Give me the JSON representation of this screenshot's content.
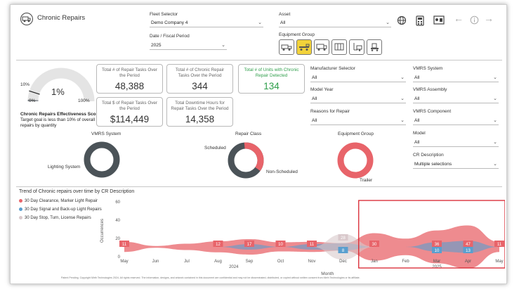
{
  "header": {
    "title": "Chronic Repairs",
    "fleet_selector_label": "Fleet Selector",
    "fleet_selector_value": "Demo Company 4",
    "asset_label": "Asset",
    "asset_value": "All",
    "date_label": "Date / Fiscal Period",
    "date_value": "2025",
    "equipment_group_label": "Equipment Group",
    "equipment_icons": [
      "tow-truck-icon",
      "flatbed-truck-icon",
      "box-truck-icon",
      "trailer-icon",
      "forklift-icon",
      "loader-icon"
    ]
  },
  "gauge": {
    "value_label": "1%",
    "min_label": "0%",
    "max_label": "100%",
    "target_label": "10%",
    "value_fraction": 0.01,
    "target_fraction": 0.1,
    "title": "Chronic Repairs Effectiveness Score",
    "subtitle": "Target goal is less than 10% of overall repairs by quantity"
  },
  "kpis": [
    {
      "title": "Total # of Repair Tasks Over the Period",
      "value": "48,388"
    },
    {
      "title": "Total # of Chronic Repair Tasks Over the Period",
      "value": "344"
    },
    {
      "title": "Total # of Units with Chronic Repair Detected",
      "value": "134"
    },
    {
      "title": "Total $ of Repair Tasks Over the Period",
      "value": "$114,449"
    },
    {
      "title": "Total Downtime Hours for Repair Tasks Over the Period",
      "value": "14,358"
    }
  ],
  "filters_mid": [
    {
      "label": "Manufacturer Selector",
      "value": "All"
    },
    {
      "label": "Model Year",
      "value": "All"
    },
    {
      "label": "Reasons for Repair",
      "value": "All"
    }
  ],
  "filters_right": [
    {
      "label": "VMRS System",
      "value": "All"
    },
    {
      "label": "VMRS Assembly",
      "value": "All"
    },
    {
      "label": "VMRS Component",
      "value": "All"
    },
    {
      "label": "Model",
      "value": "All"
    },
    {
      "label": "CR Description",
      "value": "Multiple selections"
    }
  ],
  "donuts": {
    "vmrs_title": "VMRS System",
    "vmrs_label": "Lighting System",
    "repair_title": "Repair Class",
    "repair_label_a": "Scheduled",
    "repair_label_b": "Non-Scheduled",
    "equip_title": "Equipment Group",
    "equip_label": "Trailer"
  },
  "colors": {
    "red": "#e8646a",
    "blue": "#5a9fcf",
    "grey": "#d9c9cc",
    "dark": "#4b5358",
    "green": "#2e9e4a",
    "yellow": "#f2d23a",
    "highlight": "#d9232e"
  },
  "footer": "Patent Pending. Copyright Mirth Technologies 2024. All rights reserved. The information, designs, and artwork contained in this document are confidential and may not be disseminated, distributed, or copied without written consent from Mirth Technologies or its affiliate.",
  "chart_data": {
    "type": "area",
    "title": "Trend of Chronic repairs over time by CR Description",
    "xlabel": "Month",
    "ylabel": "Occurrences",
    "ylim": [
      0,
      60
    ],
    "yticks": [
      0,
      20,
      40,
      60
    ],
    "categories": [
      "May",
      "Jun",
      "Jul",
      "Aug",
      "Sep",
      "Oct",
      "Nov",
      "Dec",
      "Jan",
      "Feb",
      "Mar",
      "Apr",
      "May"
    ],
    "year_labels": [
      {
        "text": "2024",
        "at_index": 3.5
      },
      {
        "text": "2025",
        "at_index": 10
      }
    ],
    "series": [
      {
        "name": "30 Day Clearance, Marker Light Repair",
        "values": [
          11,
          2,
          7,
          12,
          17,
          10,
          11,
          8,
          30,
          18,
          36,
          47,
          11
        ],
        "labels": [
          "11",
          "",
          "",
          "12",
          "17",
          "10",
          "11",
          "",
          "30",
          "",
          "36",
          "47",
          "11"
        ]
      },
      {
        "name": "30 Day Signal and Back-up Light Repairs",
        "values": [
          0,
          0,
          0,
          0,
          6,
          0,
          6,
          8,
          0,
          0,
          10,
          13,
          0
        ],
        "labels": [
          "",
          "",
          "",
          "",
          "",
          "",
          "",
          "8",
          "",
          "",
          "10",
          "13",
          ""
        ]
      },
      {
        "name": "30 Day Stop, Turn, License Repairs",
        "values": [
          0,
          0,
          0,
          0,
          0,
          0,
          0,
          28,
          0,
          0,
          0,
          0,
          0
        ],
        "labels": [
          "",
          "",
          "",
          "",
          "",
          "",
          "",
          "28",
          "",
          "",
          "",
          "",
          ""
        ]
      }
    ],
    "legend_position": "left"
  }
}
